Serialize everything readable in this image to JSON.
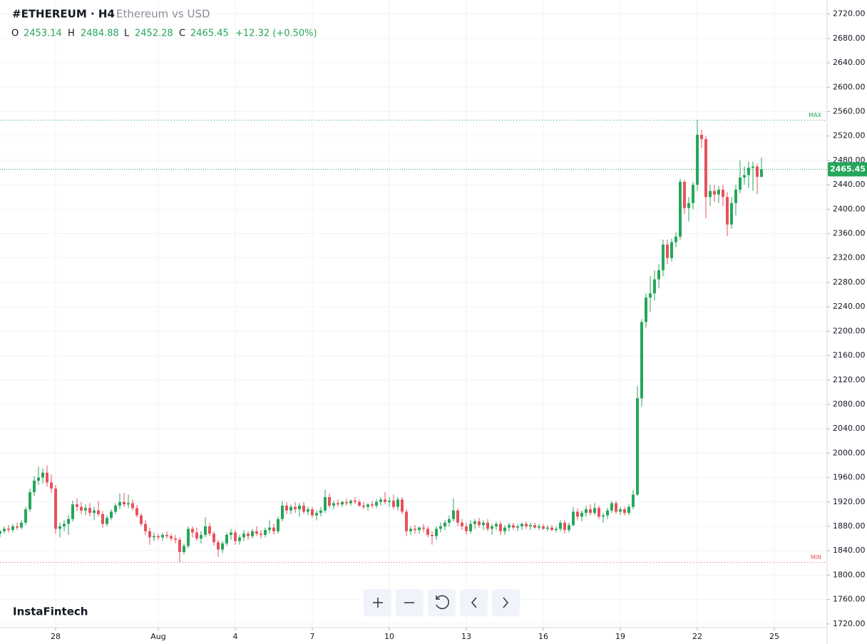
{
  "chart_data": {
    "type": "candlestick",
    "title": "#ETHEREUM · H4",
    "subtitle": "Ethereum vs USD",
    "ohlc_labels": [
      "O",
      "H",
      "L",
      "C"
    ],
    "change_label": "+12.32 (+0.50%)",
    "brand": "InstaFintech",
    "max_label": "MAX",
    "min_label": "MIN",
    "up_color": "#26a65b",
    "down_color": "#e8515c",
    "grid": true,
    "ylim": [
      1714,
      2743
    ],
    "yticks": [
      {
        "value": 1720,
        "label": "1720.00"
      },
      {
        "value": 1760,
        "label": "1760.00"
      },
      {
        "value": 1800,
        "label": "1800.00"
      },
      {
        "value": 1840,
        "label": "1840.00"
      },
      {
        "value": 1880,
        "label": "1880.00"
      },
      {
        "value": 1920,
        "label": "1920.00"
      },
      {
        "value": 1960,
        "label": "1960.00"
      },
      {
        "value": 2000,
        "label": "2000.00"
      },
      {
        "value": 2040,
        "label": "2040.00"
      },
      {
        "value": 2080,
        "label": "2080.00"
      },
      {
        "value": 2120,
        "label": "2120.00"
      },
      {
        "value": 2160,
        "label": "2160.00"
      },
      {
        "value": 2200,
        "label": "2200.00"
      },
      {
        "value": 2240,
        "label": "2240.00"
      },
      {
        "value": 2280,
        "label": "2280.00"
      },
      {
        "value": 2320,
        "label": "2320.00"
      },
      {
        "value": 2360,
        "label": "2360.00"
      },
      {
        "value": 2400,
        "label": "2400.00"
      },
      {
        "value": 2440,
        "label": "2440.00"
      },
      {
        "value": 2480,
        "label": "2480.00"
      },
      {
        "value": 2520,
        "label": "2520.00"
      },
      {
        "value": 2560,
        "label": "2560.00"
      },
      {
        "value": 2600,
        "label": "2600.00"
      },
      {
        "value": 2640,
        "label": "2640.00"
      },
      {
        "value": 2680,
        "label": "2680.00"
      },
      {
        "value": 2720,
        "label": "2720.00"
      }
    ],
    "categories": [
      null,
      null,
      null,
      null,
      null,
      null,
      null,
      null,
      null,
      null,
      null,
      null,
      null,
      "28",
      null,
      null,
      null,
      null,
      null,
      null,
      null,
      null,
      null,
      null,
      null,
      null,
      null,
      null,
      null,
      null,
      null,
      null,
      null,
      null,
      null,
      null,
      null,
      "Aug",
      null,
      null,
      null,
      null,
      null,
      null,
      null,
      null,
      null,
      null,
      null,
      null,
      null,
      null,
      null,
      null,
      null,
      "4",
      null,
      null,
      null,
      null,
      null,
      null,
      null,
      null,
      null,
      null,
      null,
      null,
      null,
      null,
      null,
      null,
      null,
      "7",
      null,
      null,
      null,
      null,
      null,
      null,
      null,
      null,
      null,
      null,
      null,
      null,
      null,
      null,
      null,
      null,
      null,
      "10",
      null,
      null,
      null,
      null,
      null,
      null,
      null,
      null,
      null,
      null,
      null,
      null,
      null,
      null,
      null,
      null,
      null,
      "13",
      null,
      null,
      null,
      null,
      null,
      null,
      null,
      null,
      null,
      null,
      null,
      null,
      null,
      null,
      null,
      null,
      null,
      "16",
      null,
      null,
      null,
      null,
      null,
      null,
      null,
      null,
      null,
      null,
      null,
      null,
      null,
      null,
      null,
      null,
      null,
      "19",
      null,
      null,
      null,
      null,
      null,
      null,
      null,
      null,
      null,
      null,
      null,
      null,
      null,
      null,
      null,
      null,
      null,
      "22",
      null,
      null,
      null,
      null,
      null,
      null,
      null,
      null,
      null,
      null,
      null,
      null,
      null,
      null,
      null,
      null,
      null,
      "25",
      null,
      null,
      null,
      null,
      null,
      null,
      null,
      null,
      null,
      null,
      null
    ],
    "candles": [
      [
        1868,
        1875,
        1862,
        1872
      ],
      [
        1872,
        1880,
        1868,
        1876
      ],
      [
        1876,
        1882,
        1870,
        1874
      ],
      [
        1874,
        1884,
        1870,
        1880
      ],
      [
        1880,
        1886,
        1874,
        1878
      ],
      [
        1878,
        1890,
        1875,
        1886
      ],
      [
        1886,
        1912,
        1882,
        1908
      ],
      [
        1908,
        1942,
        1904,
        1936
      ],
      [
        1936,
        1962,
        1930,
        1955
      ],
      [
        1955,
        1978,
        1948,
        1960
      ],
      [
        1960,
        1975,
        1950,
        1968
      ],
      [
        1968,
        1980,
        1945,
        1952
      ],
      [
        1952,
        1965,
        1935,
        1942
      ],
      [
        1942,
        1948,
        1868,
        1876
      ],
      [
        1876,
        1886,
        1862,
        1880
      ],
      [
        1880,
        1890,
        1872,
        1884
      ],
      [
        1884,
        1898,
        1866,
        1892
      ],
      [
        1892,
        1922,
        1888,
        1916
      ],
      [
        1916,
        1926,
        1905,
        1912
      ],
      [
        1912,
        1920,
        1900,
        1906
      ],
      [
        1906,
        1916,
        1898,
        1910
      ],
      [
        1910,
        1918,
        1896,
        1902
      ],
      [
        1902,
        1912,
        1890,
        1906
      ],
      [
        1906,
        1922,
        1896,
        1900
      ],
      [
        1900,
        1905,
        1878,
        1884
      ],
      [
        1884,
        1898,
        1880,
        1894
      ],
      [
        1894,
        1908,
        1890,
        1904
      ],
      [
        1904,
        1918,
        1900,
        1914
      ],
      [
        1914,
        1934,
        1908,
        1920
      ],
      [
        1920,
        1935,
        1912,
        1916
      ],
      [
        1916,
        1932,
        1910,
        1918
      ],
      [
        1918,
        1924,
        1906,
        1910
      ],
      [
        1910,
        1915,
        1895,
        1898
      ],
      [
        1898,
        1902,
        1880,
        1884
      ],
      [
        1884,
        1890,
        1866,
        1872
      ],
      [
        1872,
        1878,
        1850,
        1862
      ],
      [
        1862,
        1870,
        1856,
        1864
      ],
      [
        1864,
        1868,
        1858,
        1862
      ],
      [
        1862,
        1870,
        1856,
        1866
      ],
      [
        1866,
        1872,
        1860,
        1864
      ],
      [
        1864,
        1868,
        1856,
        1860
      ],
      [
        1860,
        1866,
        1852,
        1858
      ],
      [
        1858,
        1862,
        1821,
        1838
      ],
      [
        1838,
        1852,
        1834,
        1848
      ],
      [
        1848,
        1880,
        1844,
        1876
      ],
      [
        1876,
        1880,
        1862,
        1870
      ],
      [
        1870,
        1878,
        1856,
        1860
      ],
      [
        1860,
        1872,
        1852,
        1866
      ],
      [
        1866,
        1895,
        1862,
        1880
      ],
      [
        1880,
        1886,
        1864,
        1868
      ],
      [
        1868,
        1872,
        1848,
        1854
      ],
      [
        1854,
        1858,
        1830,
        1842
      ],
      [
        1842,
        1856,
        1836,
        1852
      ],
      [
        1852,
        1870,
        1848,
        1866
      ],
      [
        1866,
        1876,
        1858,
        1870
      ],
      [
        1870,
        1874,
        1850,
        1856
      ],
      [
        1856,
        1866,
        1850,
        1862
      ],
      [
        1862,
        1874,
        1856,
        1868
      ],
      [
        1868,
        1872,
        1858,
        1864
      ],
      [
        1864,
        1876,
        1860,
        1872
      ],
      [
        1872,
        1880,
        1864,
        1868
      ],
      [
        1868,
        1874,
        1860,
        1866
      ],
      [
        1866,
        1878,
        1862,
        1874
      ],
      [
        1874,
        1890,
        1868,
        1878
      ],
      [
        1878,
        1884,
        1866,
        1872
      ],
      [
        1872,
        1896,
        1868,
        1892
      ],
      [
        1892,
        1922,
        1888,
        1914
      ],
      [
        1914,
        1920,
        1900,
        1906
      ],
      [
        1906,
        1916,
        1900,
        1912
      ],
      [
        1912,
        1920,
        1902,
        1908
      ],
      [
        1908,
        1918,
        1896,
        1914
      ],
      [
        1914,
        1920,
        1900,
        1904
      ],
      [
        1904,
        1912,
        1898,
        1908
      ],
      [
        1908,
        1912,
        1894,
        1898
      ],
      [
        1898,
        1906,
        1890,
        1902
      ],
      [
        1902,
        1912,
        1896,
        1906
      ],
      [
        1906,
        1940,
        1902,
        1928
      ],
      [
        1928,
        1934,
        1910,
        1914
      ],
      [
        1914,
        1922,
        1908,
        1918
      ],
      [
        1918,
        1924,
        1912,
        1916
      ],
      [
        1916,
        1922,
        1912,
        1920
      ],
      [
        1920,
        1926,
        1914,
        1918
      ],
      [
        1918,
        1924,
        1914,
        1922
      ],
      [
        1922,
        1928,
        1916,
        1920
      ],
      [
        1920,
        1924,
        1912,
        1914
      ],
      [
        1914,
        1920,
        1908,
        1912
      ],
      [
        1912,
        1918,
        1906,
        1916
      ],
      [
        1916,
        1922,
        1910,
        1914
      ],
      [
        1914,
        1924,
        1910,
        1920
      ],
      [
        1920,
        1928,
        1914,
        1924
      ],
      [
        1924,
        1936,
        1916,
        1920
      ],
      [
        1920,
        1928,
        1912,
        1922
      ],
      [
        1922,
        1932,
        1908,
        1912
      ],
      [
        1912,
        1928,
        1906,
        1924
      ],
      [
        1924,
        1928,
        1900,
        1904
      ],
      [
        1904,
        1908,
        1864,
        1872
      ],
      [
        1872,
        1880,
        1866,
        1876
      ],
      [
        1876,
        1882,
        1868,
        1874
      ],
      [
        1874,
        1880,
        1868,
        1878
      ],
      [
        1878,
        1884,
        1870,
        1876
      ],
      [
        1876,
        1880,
        1862,
        1866
      ],
      [
        1866,
        1872,
        1850,
        1864
      ],
      [
        1864,
        1880,
        1858,
        1876
      ],
      [
        1876,
        1886,
        1870,
        1880
      ],
      [
        1880,
        1890,
        1874,
        1886
      ],
      [
        1886,
        1898,
        1880,
        1892
      ],
      [
        1892,
        1926,
        1888,
        1906
      ],
      [
        1906,
        1910,
        1880,
        1886
      ],
      [
        1886,
        1892,
        1874,
        1880
      ],
      [
        1880,
        1886,
        1866,
        1872
      ],
      [
        1872,
        1890,
        1868,
        1884
      ],
      [
        1884,
        1892,
        1876,
        1888
      ],
      [
        1888,
        1894,
        1878,
        1882
      ],
      [
        1882,
        1890,
        1874,
        1886
      ],
      [
        1886,
        1892,
        1872,
        1876
      ],
      [
        1876,
        1884,
        1866,
        1880
      ],
      [
        1880,
        1888,
        1874,
        1884
      ],
      [
        1884,
        1888,
        1866,
        1872
      ],
      [
        1872,
        1882,
        1866,
        1878
      ],
      [
        1878,
        1886,
        1872,
        1882
      ],
      [
        1882,
        1886,
        1874,
        1878
      ],
      [
        1878,
        1884,
        1872,
        1880
      ],
      [
        1880,
        1886,
        1874,
        1884
      ],
      [
        1884,
        1888,
        1876,
        1880
      ],
      [
        1880,
        1886,
        1874,
        1882
      ],
      [
        1882,
        1886,
        1876,
        1878
      ],
      [
        1878,
        1884,
        1874,
        1880
      ],
      [
        1880,
        1884,
        1874,
        1876
      ],
      [
        1876,
        1882,
        1872,
        1878
      ],
      [
        1878,
        1882,
        1872,
        1874
      ],
      [
        1874,
        1880,
        1870,
        1876
      ],
      [
        1876,
        1890,
        1872,
        1886
      ],
      [
        1886,
        1890,
        1868,
        1874
      ],
      [
        1874,
        1886,
        1870,
        1882
      ],
      [
        1882,
        1912,
        1880,
        1904
      ],
      [
        1904,
        1910,
        1890,
        1896
      ],
      [
        1896,
        1906,
        1888,
        1902
      ],
      [
        1902,
        1914,
        1896,
        1908
      ],
      [
        1908,
        1916,
        1898,
        1902
      ],
      [
        1902,
        1918,
        1898,
        1910
      ],
      [
        1910,
        1914,
        1892,
        1896
      ],
      [
        1896,
        1902,
        1886,
        1898
      ],
      [
        1898,
        1910,
        1892,
        1906
      ],
      [
        1906,
        1922,
        1902,
        1918
      ],
      [
        1918,
        1922,
        1900,
        1904
      ],
      [
        1904,
        1912,
        1898,
        1908
      ],
      [
        1908,
        1912,
        1898,
        1902
      ],
      [
        1902,
        1916,
        1898,
        1912
      ],
      [
        1912,
        1940,
        1908,
        1932
      ],
      [
        1932,
        2110,
        1930,
        2090
      ],
      [
        2090,
        2220,
        2076,
        2215
      ],
      [
        2215,
        2262,
        2206,
        2255
      ],
      [
        2255,
        2290,
        2232,
        2262
      ],
      [
        2262,
        2300,
        2250,
        2285
      ],
      [
        2285,
        2310,
        2270,
        2300
      ],
      [
        2300,
        2350,
        2290,
        2342
      ],
      [
        2342,
        2350,
        2310,
        2320
      ],
      [
        2320,
        2352,
        2314,
        2346
      ],
      [
        2346,
        2362,
        2338,
        2355
      ],
      [
        2355,
        2450,
        2350,
        2445
      ],
      [
        2445,
        2448,
        2392,
        2402
      ],
      [
        2402,
        2420,
        2380,
        2410
      ],
      [
        2410,
        2445,
        2400,
        2440
      ],
      [
        2440,
        2546,
        2430,
        2522
      ],
      [
        2522,
        2530,
        2500,
        2515
      ],
      [
        2515,
        2520,
        2385,
        2420
      ],
      [
        2420,
        2440,
        2405,
        2430
      ],
      [
        2430,
        2440,
        2412,
        2424
      ],
      [
        2424,
        2438,
        2410,
        2432
      ],
      [
        2432,
        2440,
        2405,
        2420
      ],
      [
        2420,
        2428,
        2356,
        2375
      ],
      [
        2375,
        2420,
        2368,
        2410
      ],
      [
        2410,
        2440,
        2390,
        2432
      ],
      [
        2432,
        2480,
        2426,
        2452
      ],
      [
        2452,
        2470,
        2440,
        2456
      ],
      [
        2456,
        2478,
        2435,
        2468
      ],
      [
        2468,
        2478,
        2430,
        2470
      ],
      [
        2470,
        2475,
        2425,
        2453.14
      ],
      [
        2453.14,
        2484.88,
        2452.28,
        2465.45
      ],
      null,
      null,
      null,
      null,
      null,
      null,
      null,
      null,
      null,
      null,
      null,
      null,
      null,
      null
    ]
  }
}
